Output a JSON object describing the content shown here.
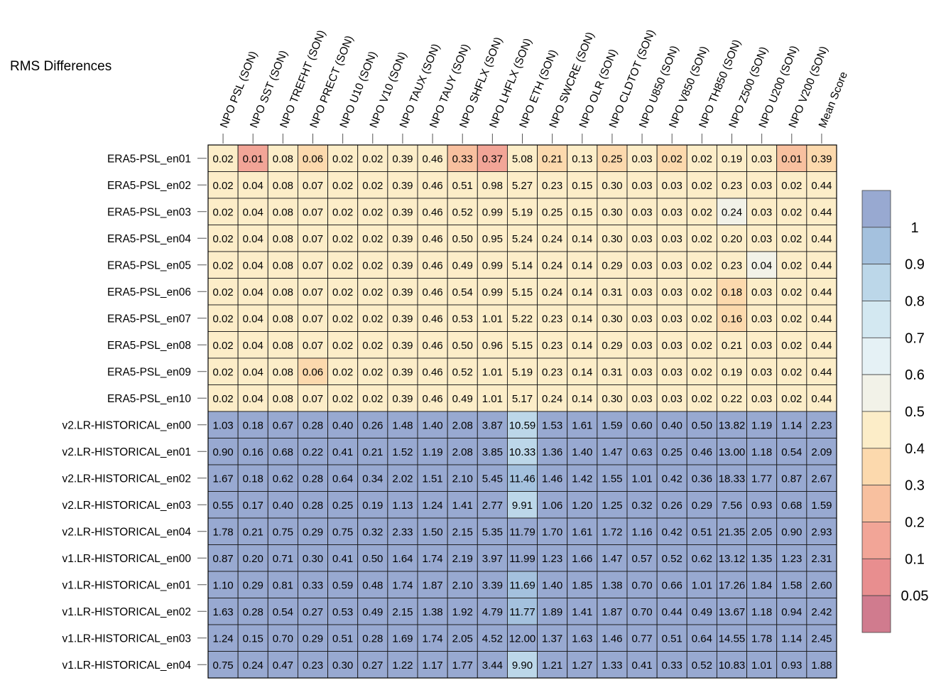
{
  "chart_data": {
    "type": "heatmap",
    "title": "RMS Differences",
    "columns": [
      "NPO PSL (SON)",
      "NPO SST (SON)",
      "NPO TREFHT (SON)",
      "NPO PRECT (SON)",
      "NPO U10 (SON)",
      "NPO V10 (SON)",
      "NPO TAUX (SON)",
      "NPO TAUY (SON)",
      "NPO SHFLX (SON)",
      "NPO LHFLX (SON)",
      "NPO ETH (SON)",
      "NPO SWCRE (SON)",
      "NPO OLR (SON)",
      "NPO CLDTOT (SON)",
      "NPO U850 (SON)",
      "NPO V850 (SON)",
      "NPO TH850 (SON)",
      "NPO Z500 (SON)",
      "NPO U200 (SON)",
      "NPO V200 (SON)",
      "Mean Score"
    ],
    "rows": [
      "ERA5-PSL_en01",
      "ERA5-PSL_en02",
      "ERA5-PSL_en03",
      "ERA5-PSL_en04",
      "ERA5-PSL_en05",
      "ERA5-PSL_en06",
      "ERA5-PSL_en07",
      "ERA5-PSL_en08",
      "ERA5-PSL_en09",
      "ERA5-PSL_en10",
      "v2.LR-HISTORICAL_en00",
      "v2.LR-HISTORICAL_en01",
      "v2.LR-HISTORICAL_en02",
      "v2.LR-HISTORICAL_en03",
      "v2.LR-HISTORICAL_en04",
      "v1.LR-HISTORICAL_en00",
      "v1.LR-HISTORICAL_en01",
      "v1.LR-HISTORICAL_en02",
      "v1.LR-HISTORICAL_en03",
      "v1.LR-HISTORICAL_en04"
    ],
    "values": [
      [
        "0.02",
        "0.01",
        "0.08",
        "0.06",
        "0.02",
        "0.02",
        "0.39",
        "0.46",
        "0.33",
        "0.37",
        "5.08",
        "0.21",
        "0.13",
        "0.25",
        "0.03",
        "0.02",
        "0.02",
        "0.19",
        "0.03",
        "0.01",
        "0.39"
      ],
      [
        "0.02",
        "0.04",
        "0.08",
        "0.07",
        "0.02",
        "0.02",
        "0.39",
        "0.46",
        "0.51",
        "0.98",
        "5.27",
        "0.23",
        "0.15",
        "0.30",
        "0.03",
        "0.03",
        "0.02",
        "0.23",
        "0.03",
        "0.02",
        "0.44"
      ],
      [
        "0.02",
        "0.04",
        "0.08",
        "0.07",
        "0.02",
        "0.02",
        "0.39",
        "0.46",
        "0.52",
        "0.99",
        "5.19",
        "0.25",
        "0.15",
        "0.30",
        "0.03",
        "0.03",
        "0.02",
        "0.24",
        "0.03",
        "0.02",
        "0.44"
      ],
      [
        "0.02",
        "0.04",
        "0.08",
        "0.07",
        "0.02",
        "0.02",
        "0.39",
        "0.46",
        "0.50",
        "0.95",
        "5.24",
        "0.24",
        "0.14",
        "0.30",
        "0.03",
        "0.03",
        "0.02",
        "0.20",
        "0.03",
        "0.02",
        "0.44"
      ],
      [
        "0.02",
        "0.04",
        "0.08",
        "0.07",
        "0.02",
        "0.02",
        "0.39",
        "0.46",
        "0.49",
        "0.99",
        "5.14",
        "0.24",
        "0.14",
        "0.29",
        "0.03",
        "0.03",
        "0.02",
        "0.23",
        "0.04",
        "0.02",
        "0.44"
      ],
      [
        "0.02",
        "0.04",
        "0.08",
        "0.07",
        "0.02",
        "0.02",
        "0.39",
        "0.46",
        "0.54",
        "0.99",
        "5.15",
        "0.24",
        "0.14",
        "0.31",
        "0.03",
        "0.03",
        "0.02",
        "0.18",
        "0.03",
        "0.02",
        "0.44"
      ],
      [
        "0.02",
        "0.04",
        "0.08",
        "0.07",
        "0.02",
        "0.02",
        "0.39",
        "0.46",
        "0.53",
        "1.01",
        "5.22",
        "0.23",
        "0.14",
        "0.30",
        "0.03",
        "0.03",
        "0.02",
        "0.16",
        "0.03",
        "0.02",
        "0.44"
      ],
      [
        "0.02",
        "0.04",
        "0.08",
        "0.07",
        "0.02",
        "0.02",
        "0.39",
        "0.46",
        "0.50",
        "0.96",
        "5.15",
        "0.23",
        "0.14",
        "0.29",
        "0.03",
        "0.03",
        "0.02",
        "0.21",
        "0.03",
        "0.02",
        "0.44"
      ],
      [
        "0.02",
        "0.04",
        "0.08",
        "0.06",
        "0.02",
        "0.02",
        "0.39",
        "0.46",
        "0.52",
        "1.01",
        "5.19",
        "0.23",
        "0.14",
        "0.31",
        "0.03",
        "0.03",
        "0.02",
        "0.19",
        "0.03",
        "0.02",
        "0.44"
      ],
      [
        "0.02",
        "0.04",
        "0.08",
        "0.07",
        "0.02",
        "0.02",
        "0.39",
        "0.46",
        "0.49",
        "1.01",
        "5.17",
        "0.24",
        "0.14",
        "0.30",
        "0.03",
        "0.03",
        "0.02",
        "0.22",
        "0.03",
        "0.02",
        "0.44"
      ],
      [
        "1.03",
        "0.18",
        "0.67",
        "0.28",
        "0.40",
        "0.26",
        "1.48",
        "1.40",
        "2.08",
        "3.87",
        "10.59",
        "1.53",
        "1.61",
        "1.59",
        "0.60",
        "0.40",
        "0.50",
        "13.82",
        "1.19",
        "1.14",
        "2.23"
      ],
      [
        "0.90",
        "0.16",
        "0.68",
        "0.22",
        "0.41",
        "0.21",
        "1.52",
        "1.19",
        "2.08",
        "3.85",
        "10.33",
        "1.36",
        "1.40",
        "1.47",
        "0.63",
        "0.25",
        "0.46",
        "13.00",
        "1.18",
        "0.54",
        "2.09"
      ],
      [
        "1.67",
        "0.18",
        "0.62",
        "0.28",
        "0.64",
        "0.34",
        "2.02",
        "1.51",
        "2.10",
        "5.45",
        "11.46",
        "1.46",
        "1.42",
        "1.55",
        "1.01",
        "0.42",
        "0.36",
        "18.33",
        "1.77",
        "0.87",
        "2.67"
      ],
      [
        "0.55",
        "0.17",
        "0.40",
        "0.28",
        "0.25",
        "0.19",
        "1.13",
        "1.24",
        "1.41",
        "2.77",
        "9.91",
        "1.06",
        "1.20",
        "1.25",
        "0.32",
        "0.26",
        "0.29",
        "7.56",
        "0.93",
        "0.68",
        "1.59"
      ],
      [
        "1.78",
        "0.21",
        "0.75",
        "0.29",
        "0.75",
        "0.32",
        "2.33",
        "1.50",
        "2.15",
        "5.35",
        "11.79",
        "1.70",
        "1.61",
        "1.72",
        "1.16",
        "0.42",
        "0.51",
        "21.35",
        "2.05",
        "0.90",
        "2.93"
      ],
      [
        "0.87",
        "0.20",
        "0.71",
        "0.30",
        "0.41",
        "0.50",
        "1.64",
        "1.74",
        "2.19",
        "3.97",
        "11.99",
        "1.23",
        "1.66",
        "1.47",
        "0.57",
        "0.52",
        "0.62",
        "13.12",
        "1.35",
        "1.23",
        "2.31"
      ],
      [
        "1.10",
        "0.29",
        "0.81",
        "0.33",
        "0.59",
        "0.48",
        "1.74",
        "1.87",
        "2.10",
        "3.39",
        "11.69",
        "1.40",
        "1.85",
        "1.38",
        "0.70",
        "0.66",
        "1.01",
        "17.26",
        "1.84",
        "1.58",
        "2.60"
      ],
      [
        "1.63",
        "0.28",
        "0.54",
        "0.27",
        "0.53",
        "0.49",
        "2.15",
        "1.38",
        "1.92",
        "4.79",
        "11.77",
        "1.89",
        "1.41",
        "1.87",
        "0.70",
        "0.44",
        "0.49",
        "13.67",
        "1.18",
        "0.94",
        "2.42"
      ],
      [
        "1.24",
        "0.15",
        "0.70",
        "0.29",
        "0.51",
        "0.28",
        "1.69",
        "1.74",
        "2.05",
        "4.52",
        "12.00",
        "1.37",
        "1.63",
        "1.46",
        "0.77",
        "0.51",
        "0.64",
        "14.55",
        "1.78",
        "1.14",
        "2.45"
      ],
      [
        "0.75",
        "0.24",
        "0.47",
        "0.23",
        "0.30",
        "0.27",
        "1.22",
        "1.17",
        "1.77",
        "3.44",
        "9.90",
        "1.21",
        "1.27",
        "1.33",
        "0.41",
        "0.33",
        "0.52",
        "10.83",
        "1.01",
        "0.93",
        "1.88"
      ]
    ],
    "colorbar": {
      "levels": [
        "1",
        "0.9",
        "0.8",
        "0.7",
        "0.6",
        "0.5",
        "0.4",
        "0.3",
        "0.2",
        "0.1",
        "0.05"
      ],
      "colors": [
        "#98a9d1",
        "#a4c1de",
        "#bcd7e9",
        "#d3e8f1",
        "#e5f1f5",
        "#f2f2e8",
        "#fcedc8",
        "#fcd9ad",
        "#f8c09f",
        "#f2a597",
        "#e88e8f",
        "#d07b8e"
      ]
    }
  }
}
